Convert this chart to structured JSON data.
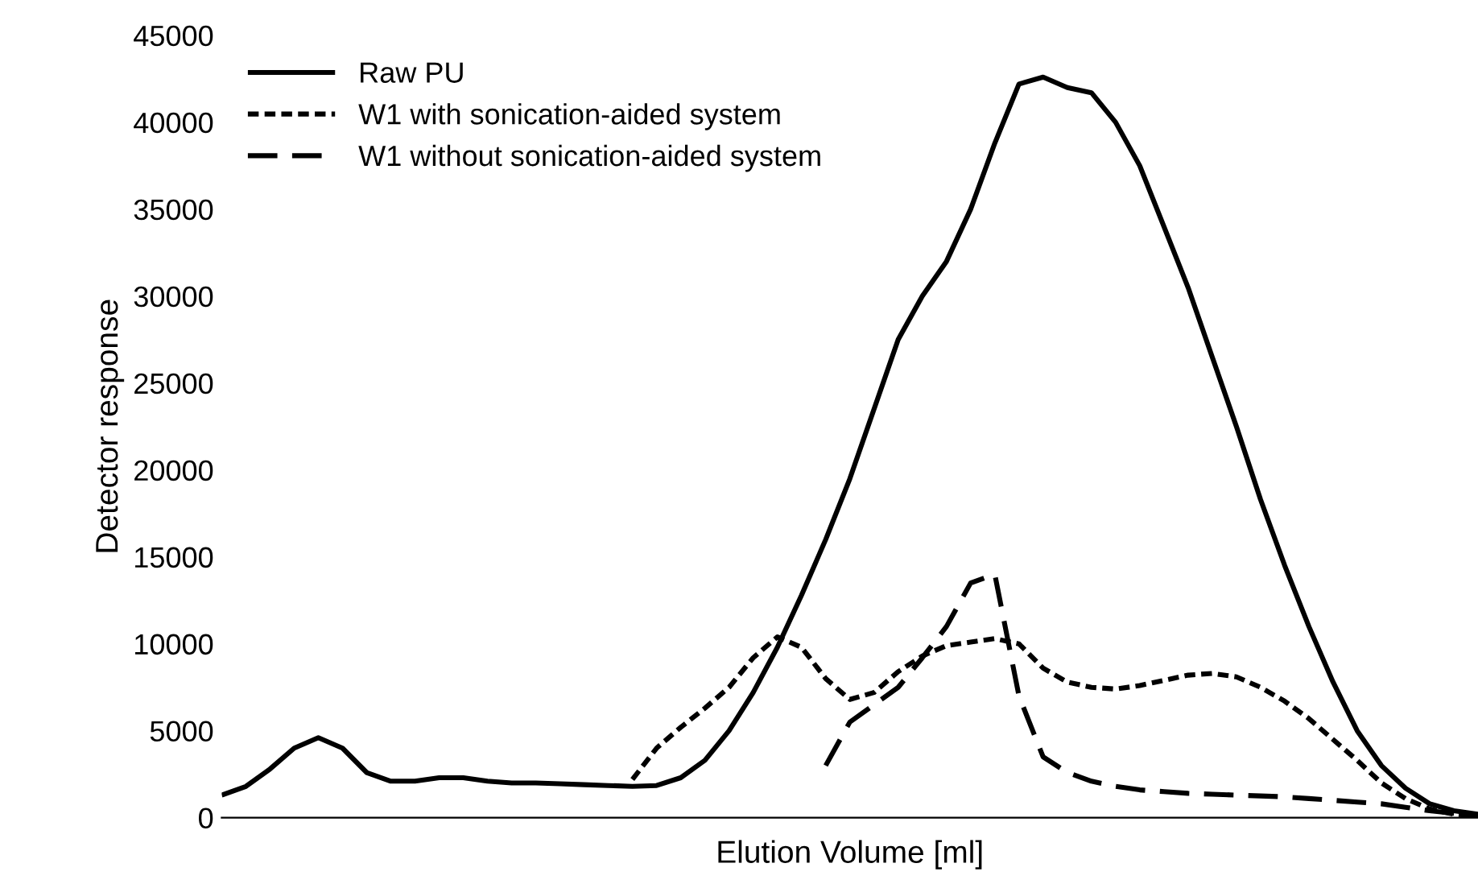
{
  "chart_data": {
    "type": "line",
    "xlabel": "Elution Volume [ml]",
    "ylabel": "Detector response",
    "categories": [
      null,
      null,
      null,
      null,
      null,
      null,
      null,
      null,
      null,
      null,
      null,
      null,
      null,
      null,
      null,
      null,
      null,
      null,
      null,
      null,
      null,
      null,
      null,
      null,
      null,
      null,
      null,
      null,
      null,
      null,
      null,
      null,
      null,
      null,
      null,
      null,
      null,
      null,
      null,
      null,
      null,
      null,
      null,
      null,
      null,
      null,
      null,
      null,
      null,
      null,
      null,
      null,
      null
    ],
    "series": [
      {
        "name": "Raw PU",
        "color": "#000000",
        "line_style": "solid",
        "values": [
          1300,
          1800,
          2800,
          4000,
          4600,
          4000,
          2600,
          2100,
          2100,
          2300,
          2300,
          2100,
          2000,
          2000,
          1950,
          1900,
          1850,
          1800,
          1850,
          2300,
          3300,
          5000,
          7200,
          9800,
          12800,
          16000,
          19500,
          23500,
          27500,
          30000,
          32000,
          35000,
          38800,
          42200,
          42600,
          42000,
          41700,
          40000,
          37500,
          34000,
          30500,
          26500,
          22500,
          18300,
          14500,
          11000,
          7800,
          5000,
          3000,
          1700,
          800,
          400,
          200
        ]
      },
      {
        "name": "W1 with sonication-aided system",
        "color": "#000000",
        "line_style": "dotted",
        "values": [
          null,
          null,
          null,
          null,
          null,
          null,
          null,
          null,
          null,
          null,
          null,
          null,
          null,
          null,
          null,
          null,
          null,
          2200,
          4000,
          5200,
          6300,
          7500,
          9200,
          10400,
          9800,
          8000,
          6800,
          7200,
          8400,
          9300,
          9900,
          10100,
          10300,
          10000,
          8600,
          7800,
          7500,
          7400,
          7600,
          7900,
          8200,
          8300,
          8100,
          7500,
          6700,
          5700,
          4500,
          3300,
          2000,
          1100,
          500,
          200,
          100
        ]
      },
      {
        "name": "W1 without sonication-aided system",
        "color": "#000000",
        "line_style": "dashed",
        "values": [
          null,
          null,
          null,
          null,
          null,
          null,
          null,
          null,
          null,
          null,
          null,
          null,
          null,
          null,
          null,
          null,
          null,
          null,
          null,
          null,
          null,
          null,
          null,
          null,
          null,
          3000,
          5500,
          6500,
          7500,
          9200,
          11000,
          13500,
          14000,
          7000,
          3500,
          2600,
          2100,
          1800,
          1600,
          1500,
          1400,
          1350,
          1300,
          1250,
          1200,
          1100,
          1000,
          900,
          800,
          600,
          400,
          250,
          100
        ]
      }
    ],
    "ylim": [
      0,
      45000
    ],
    "yticks": [
      0,
      5000,
      10000,
      15000,
      20000,
      25000,
      30000,
      35000,
      40000,
      45000
    ],
    "tick_labels": "y",
    "legend": "top left",
    "grid": false
  }
}
